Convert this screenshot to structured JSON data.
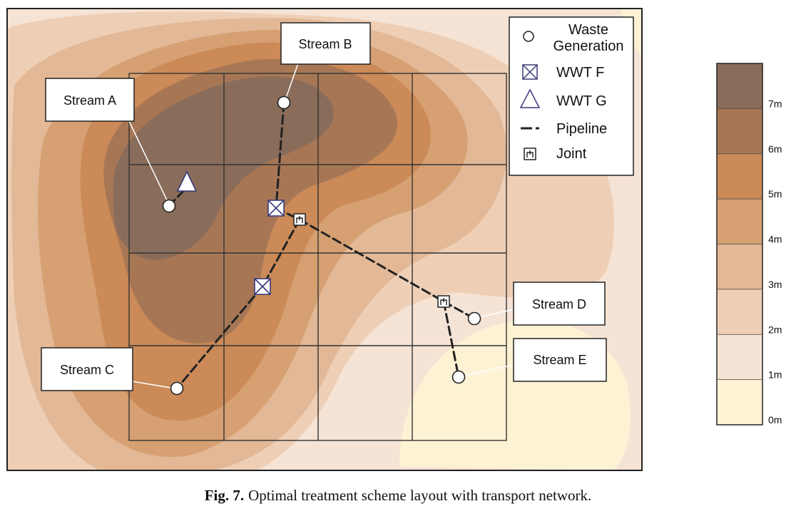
{
  "figure": {
    "caption_label": "Fig. 7.",
    "caption_text": "Optimal treatment scheme layout with transport network."
  },
  "streams": [
    {
      "id": "A",
      "label": "Stream A"
    },
    {
      "id": "B",
      "label": "Stream B"
    },
    {
      "id": "C",
      "label": "Stream C"
    },
    {
      "id": "D",
      "label": "Stream D"
    },
    {
      "id": "E",
      "label": "Stream E"
    }
  ],
  "legend": {
    "items": [
      {
        "symbol": "circle-icon",
        "label_line1": "Waste",
        "label_line2": "Generation"
      },
      {
        "symbol": "crossed-box-icon",
        "label": "WWT F"
      },
      {
        "symbol": "triangle-icon",
        "label": "WWT G"
      },
      {
        "symbol": "dashed-line-icon",
        "label": "Pipeline"
      },
      {
        "symbol": "joint-icon",
        "label": "Joint"
      }
    ]
  },
  "colorbar": {
    "ticks": [
      "0m",
      "1m",
      "2m",
      "3m",
      "4m",
      "5m",
      "6m",
      "7m"
    ],
    "band_colors": [
      "#fdf2d4",
      "#f5e3d5",
      "#eecfb6",
      "#e2b896",
      "#d6a072",
      "#cb8a58",
      "#a77755",
      "#8a6c5a"
    ]
  },
  "colors": {
    "pipeline": "#222222",
    "wwt_f_stroke": "#3a3a7a",
    "wwt_g_stroke": "#3a3a7a",
    "map_border": "#222222"
  }
}
